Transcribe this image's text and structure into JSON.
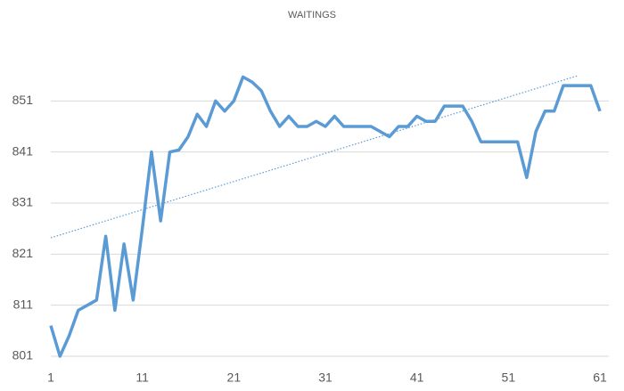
{
  "chart_data": {
    "type": "line",
    "title": "WAITINGS",
    "x": [
      1,
      2,
      3,
      4,
      5,
      6,
      7,
      8,
      9,
      10,
      11,
      12,
      13,
      14,
      15,
      16,
      17,
      18,
      19,
      20,
      21,
      22,
      23,
      24,
      25,
      26,
      27,
      28,
      29,
      30,
      31,
      32,
      33,
      34,
      35,
      36,
      37,
      38,
      39,
      40,
      41,
      42,
      43,
      44,
      45,
      46,
      47,
      48,
      49,
      50,
      51,
      52,
      53,
      54,
      55,
      56,
      57,
      58,
      59,
      60,
      61
    ],
    "series": [
      {
        "name": "WAITINGS",
        "color": "#5b9bd5",
        "values": [
          807,
          801,
          805,
          810,
          811,
          812,
          824.5,
          810,
          823,
          812,
          826,
          841,
          827.5,
          841,
          841.4,
          844,
          848.4,
          846,
          851,
          849,
          851,
          855.7,
          854.7,
          853,
          849,
          846,
          848,
          846,
          846,
          847,
          846,
          848,
          846,
          846,
          846,
          846,
          845,
          844,
          846,
          846,
          848,
          847,
          847,
          850,
          850,
          850,
          847,
          843,
          843,
          843,
          843,
          843,
          836,
          845,
          849,
          849,
          854,
          854,
          854,
          854,
          849
        ]
      }
    ],
    "trendline": {
      "x": [
        1,
        58.5
      ],
      "values": [
        824.2,
        855.9
      ],
      "color": "#5b9bd5"
    },
    "xlim": [
      1,
      61
    ],
    "xticks": [
      1,
      11,
      21,
      31,
      41,
      51,
      61
    ],
    "ylim": [
      801,
      861
    ],
    "yticks": [
      801,
      811,
      821,
      831,
      841,
      851
    ],
    "grid": true
  }
}
